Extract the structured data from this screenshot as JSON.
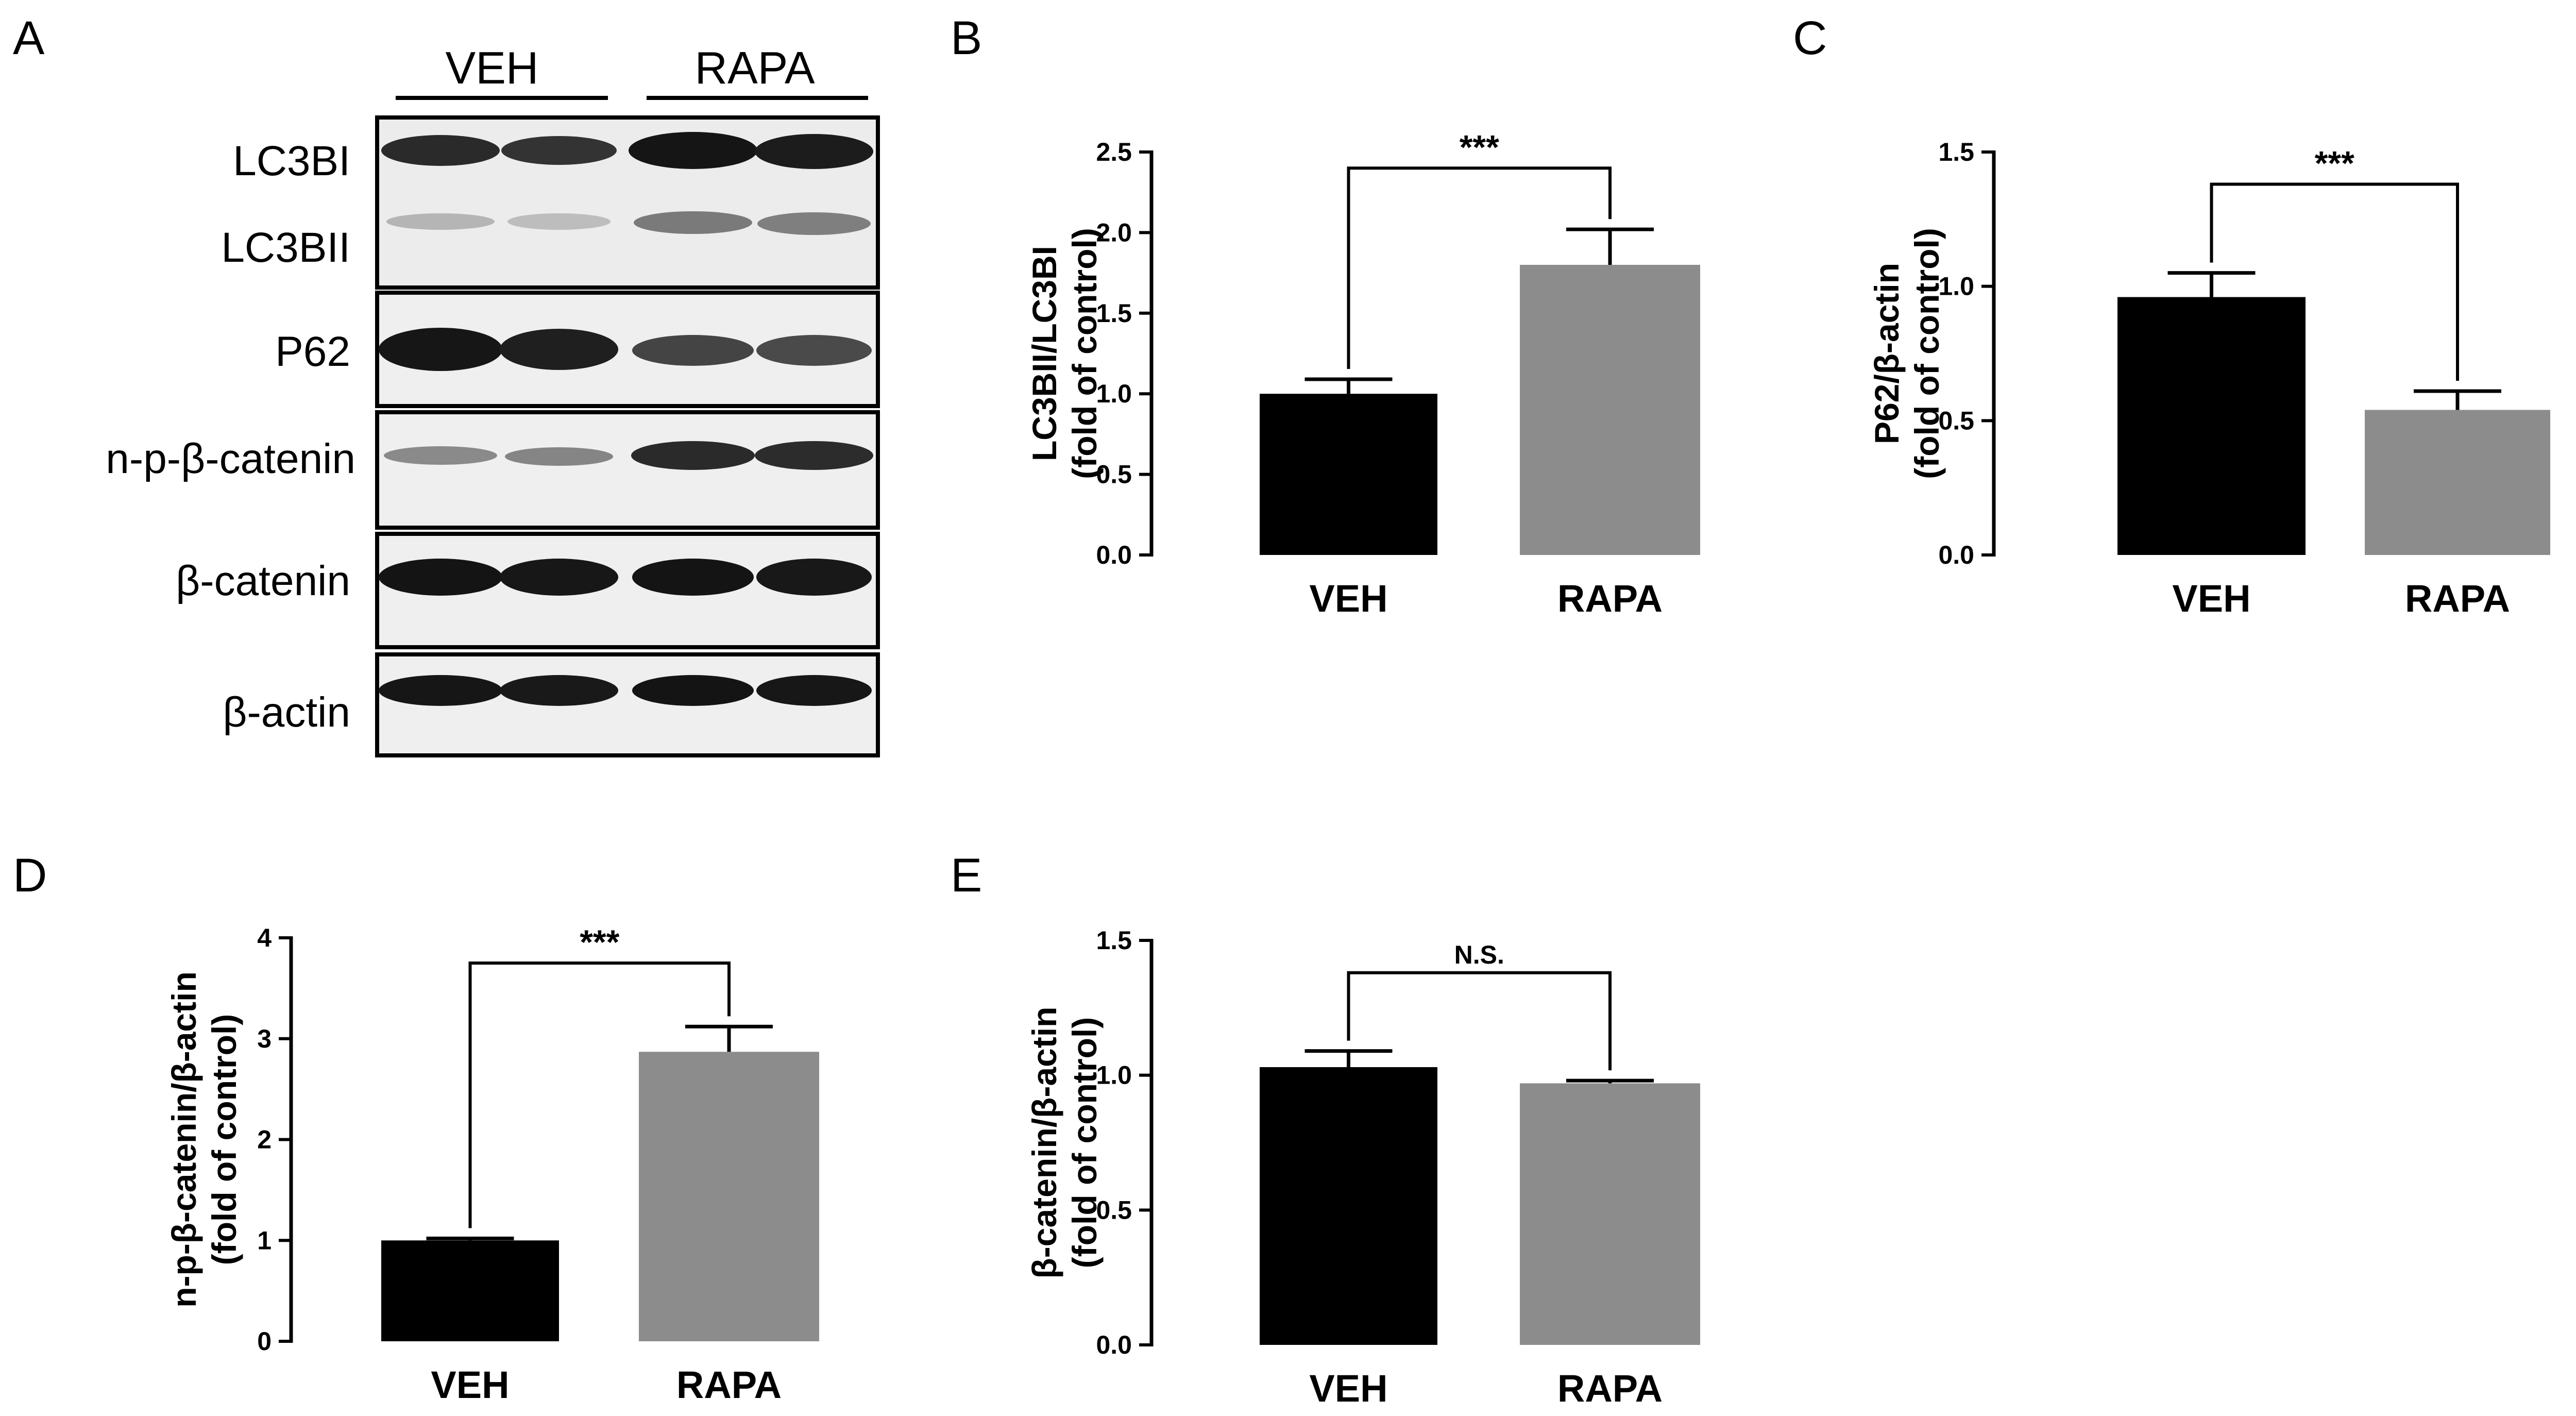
{
  "panel_a": {
    "letter": "A",
    "groups": [
      "VEH",
      "RAPA"
    ],
    "bands": [
      {
        "label": "LC3BI"
      },
      {
        "label": "LC3BII"
      },
      {
        "label": "P62"
      },
      {
        "label": "n-p-β-catenin"
      },
      {
        "label": "β-catenin"
      },
      {
        "label": "β-actin"
      }
    ]
  },
  "colors": {
    "veh": "#000000",
    "rapa": "#8c8c8c"
  },
  "chart_data": [
    {
      "type": "bar",
      "panel": "B",
      "categories": [
        "VEH",
        "RAPA"
      ],
      "values": [
        1.0,
        1.8
      ],
      "errors": [
        0.09,
        0.22
      ],
      "ylabel": [
        "LC3BII/LC3BI",
        "(fold of control)"
      ],
      "ylim": [
        0,
        2.5
      ],
      "yticks": [
        "0.0",
        "0.5",
        "1.0",
        "1.5",
        "2.0",
        "2.5"
      ],
      "ytick_values": [
        0,
        0.5,
        1.0,
        1.5,
        2.0,
        2.5
      ],
      "significance": "***",
      "bracket_top": 2.4
    },
    {
      "type": "bar",
      "panel": "C",
      "categories": [
        "VEH",
        "RAPA"
      ],
      "values": [
        0.96,
        0.54
      ],
      "errors": [
        0.09,
        0.07
      ],
      "ylabel": [
        "P62/β-actin",
        "(fold of control)"
      ],
      "ylim": [
        0,
        1.5
      ],
      "yticks": [
        "0.0",
        "0.5",
        "1.0",
        "1.5"
      ],
      "ytick_values": [
        0,
        0.5,
        1.0,
        1.5
      ],
      "significance": "***",
      "bracket_top": 1.38
    },
    {
      "type": "bar",
      "panel": "D",
      "categories": [
        "VEH",
        "RAPA"
      ],
      "values": [
        1.0,
        2.87
      ],
      "errors": [
        0.02,
        0.25
      ],
      "ylabel": [
        "n-p-β-catenin/β-actin",
        "(fold of control)"
      ],
      "ylim": [
        0,
        4
      ],
      "yticks": [
        "0",
        "1",
        "2",
        "3",
        "4"
      ],
      "ytick_values": [
        0,
        1,
        2,
        3,
        4
      ],
      "significance": "***",
      "bracket_top": 3.75
    },
    {
      "type": "bar",
      "panel": "E",
      "categories": [
        "VEH",
        "RAPA"
      ],
      "values": [
        1.03,
        0.97
      ],
      "errors": [
        0.06,
        0.01
      ],
      "ylabel": [
        "β-catenin/β-actin",
        "(fold of control)"
      ],
      "ylim": [
        0,
        1.5
      ],
      "yticks": [
        "0.0",
        "0.5",
        "1.0",
        "1.5"
      ],
      "ytick_values": [
        0,
        0.5,
        1.0,
        1.5
      ],
      "significance": "N.S.",
      "bracket_top": 1.38
    }
  ]
}
